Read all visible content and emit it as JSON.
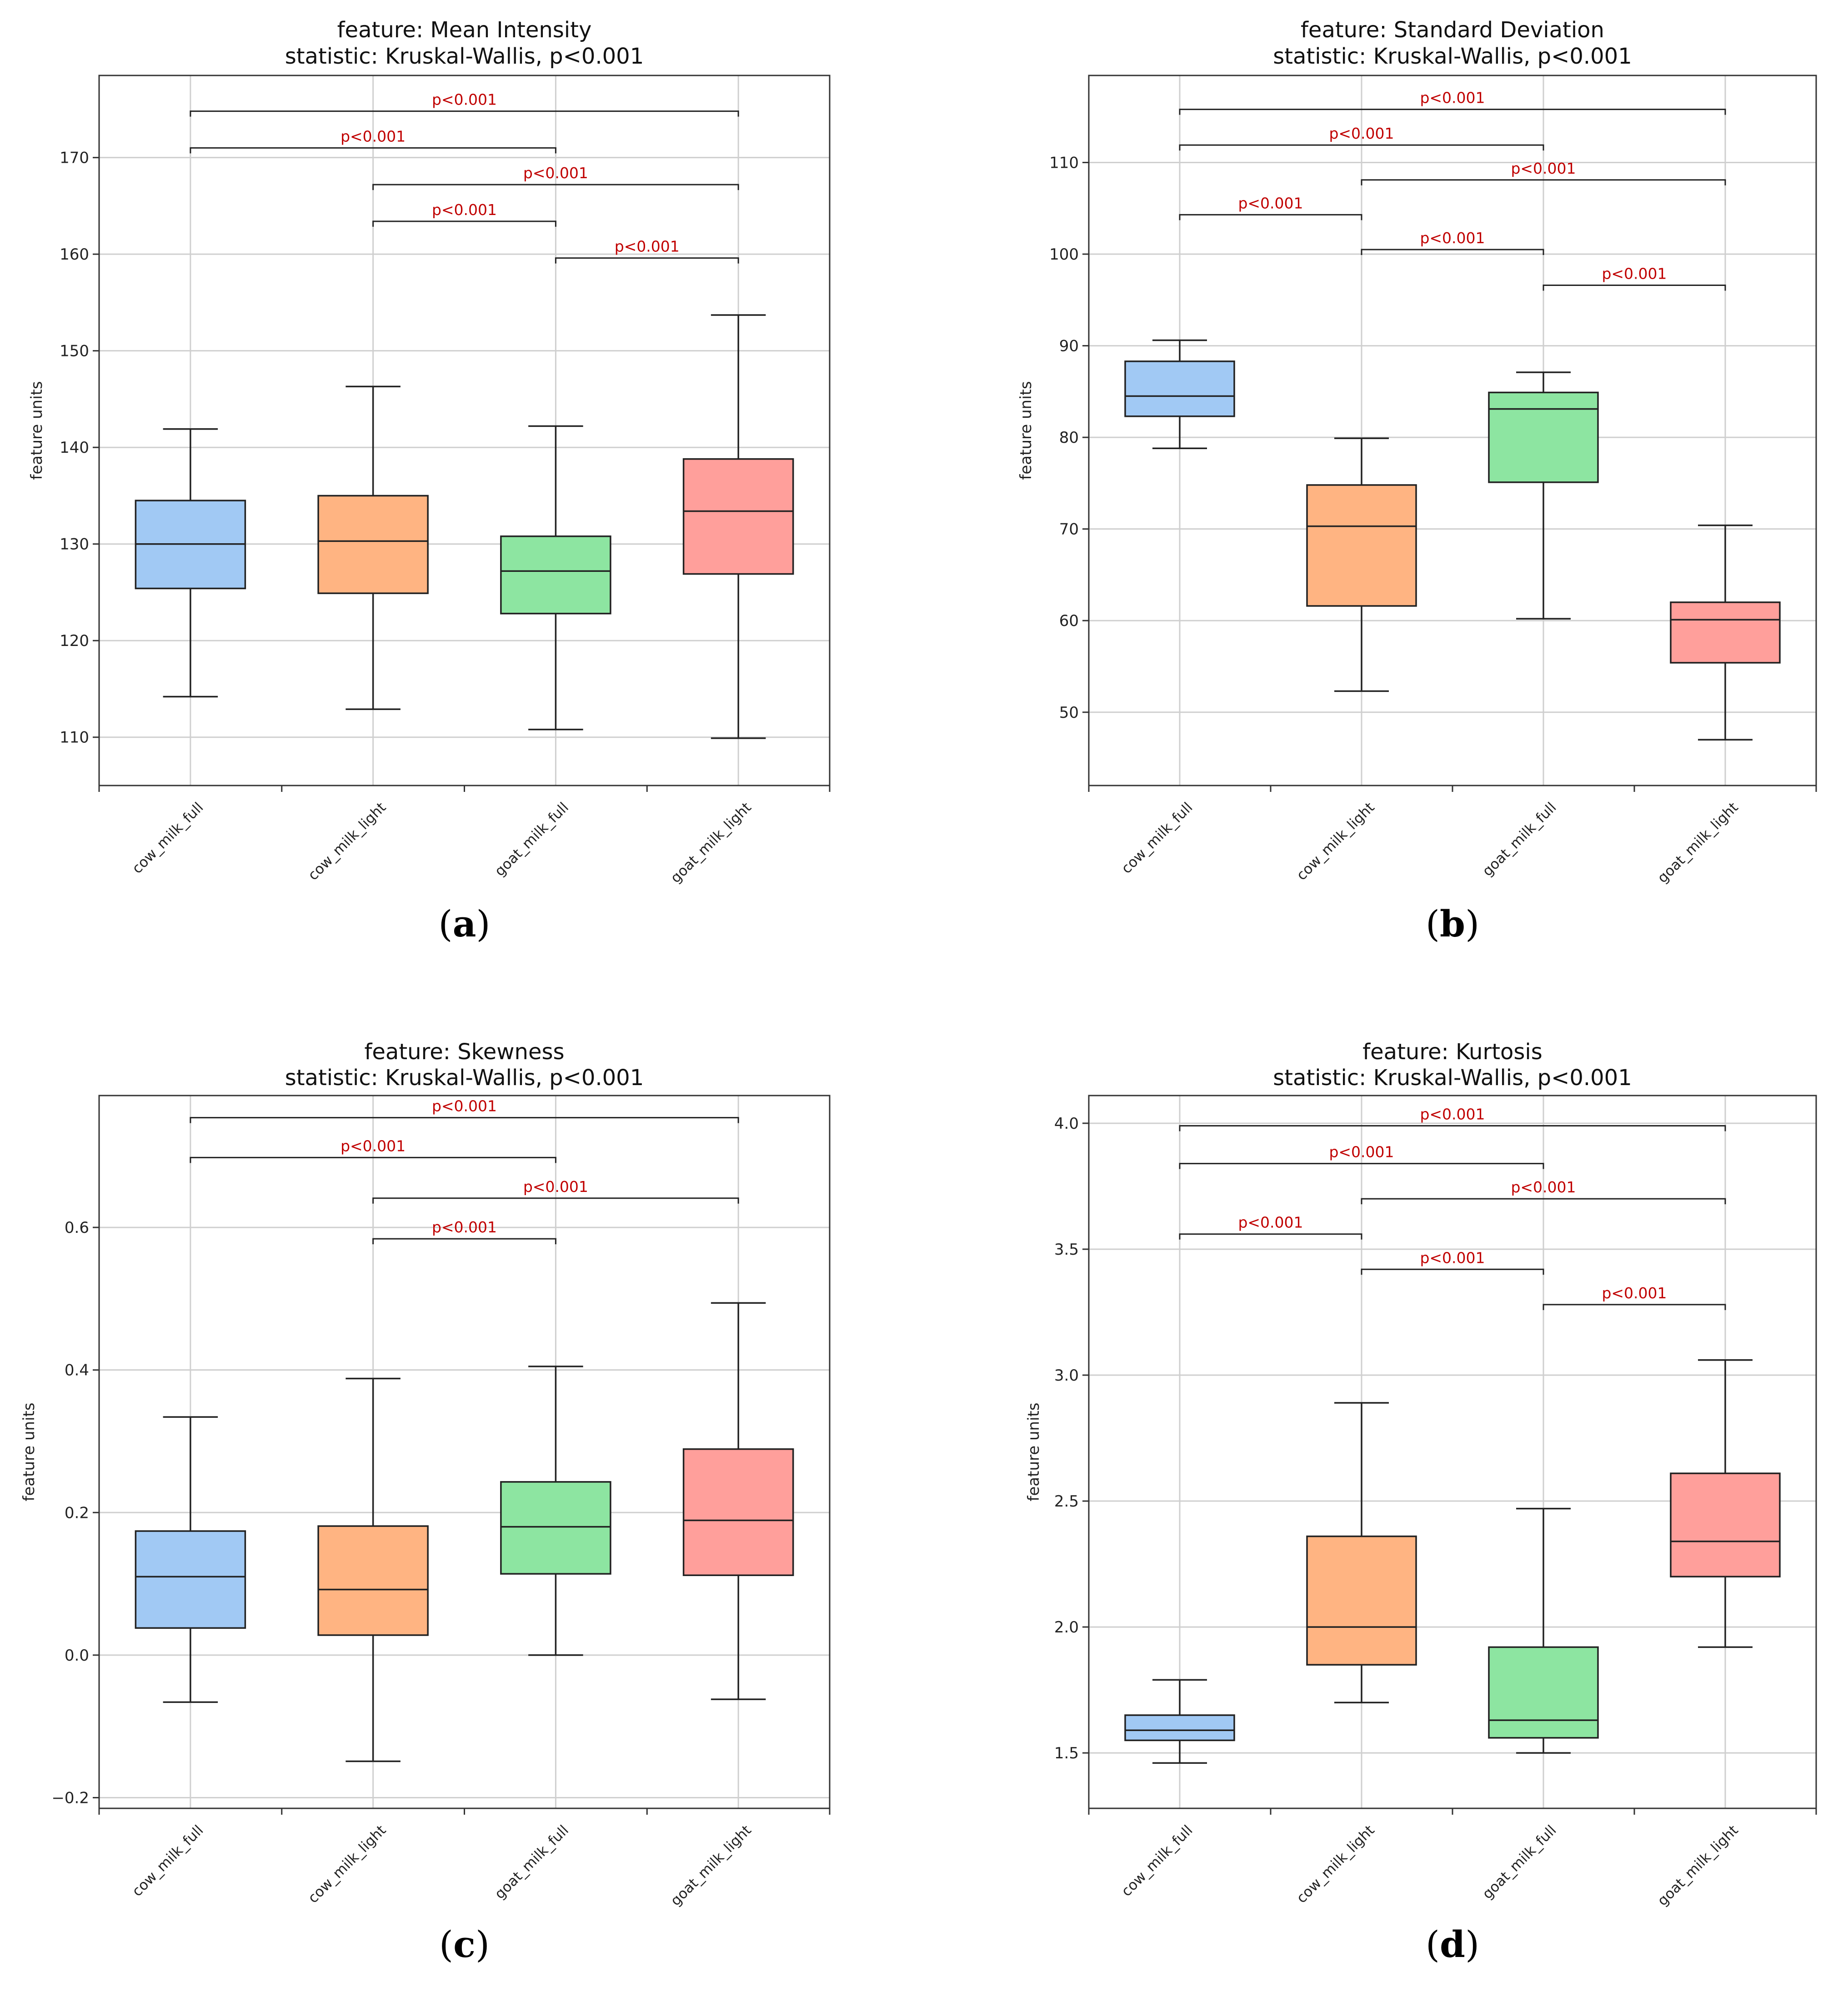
{
  "colors": {
    "box_fills": [
      "#a1c9f4",
      "#ffb482",
      "#8de5a1",
      "#ff9f9b"
    ],
    "sig_text": "#c00000",
    "grid": "#cfcfcf",
    "axis": "#333333"
  },
  "chart_data": [
    {
      "type": "box",
      "panel_label": "a",
      "title_line1": "feature: Mean Intensity",
      "title_line2": "statistic: Kruskal-Wallis, p<0.001",
      "ylabel": "feature units",
      "ylim": [
        105,
        178.5
      ],
      "yticks": [
        110,
        120,
        130,
        140,
        150,
        160,
        170
      ],
      "ytick_labels": [
        "110",
        "120",
        "130",
        "140",
        "150",
        "160",
        "170"
      ],
      "categories": [
        "cow_milk_full",
        "cow_milk_light",
        "goat_milk_full",
        "goat_milk_light"
      ],
      "boxes": [
        {
          "min": 114.2,
          "q1": 125.4,
          "median": 130.0,
          "q3": 134.5,
          "max": 141.9
        },
        {
          "min": 112.9,
          "q1": 124.9,
          "median": 130.3,
          "q3": 135.0,
          "max": 146.3
        },
        {
          "min": 110.8,
          "q1": 122.8,
          "median": 127.2,
          "q3": 130.8,
          "max": 142.2
        },
        {
          "min": 109.9,
          "q1": 126.9,
          "median": 133.4,
          "q3": 138.8,
          "max": 153.7
        }
      ],
      "brackets": [
        {
          "from": 0,
          "to": 3,
          "y": 174.8,
          "label": "p<0.001"
        },
        {
          "from": 0,
          "to": 2,
          "y": 171.0,
          "label": "p<0.001"
        },
        {
          "from": 1,
          "to": 3,
          "y": 167.2,
          "label": "p<0.001"
        },
        {
          "from": 1,
          "to": 2,
          "y": 163.4,
          "label": "p<0.001"
        },
        {
          "from": 2,
          "to": 3,
          "y": 159.6,
          "label": "p<0.001"
        }
      ]
    },
    {
      "type": "box",
      "panel_label": "b",
      "title_line1": "feature: Standard Deviation",
      "title_line2": "statistic: Kruskal-Wallis, p<0.001",
      "ylabel": "feature units",
      "ylim": [
        42,
        119.5
      ],
      "yticks": [
        50,
        60,
        70,
        80,
        90,
        100,
        110
      ],
      "ytick_labels": [
        "50",
        "60",
        "70",
        "80",
        "90",
        "100",
        "110"
      ],
      "categories": [
        "cow_milk_full",
        "cow_milk_light",
        "goat_milk_full",
        "goat_milk_light"
      ],
      "boxes": [
        {
          "min": 78.8,
          "q1": 82.3,
          "median": 84.5,
          "q3": 88.3,
          "max": 90.6
        },
        {
          "min": 52.3,
          "q1": 61.6,
          "median": 70.3,
          "q3": 74.8,
          "max": 79.9
        },
        {
          "min": 60.2,
          "q1": 75.1,
          "median": 83.1,
          "q3": 84.9,
          "max": 87.1
        },
        {
          "min": 47.0,
          "q1": 55.4,
          "median": 60.1,
          "q3": 62.0,
          "max": 70.4
        }
      ],
      "brackets": [
        {
          "from": 0,
          "to": 3,
          "y": 115.8,
          "label": "p<0.001"
        },
        {
          "from": 0,
          "to": 2,
          "y": 111.9,
          "label": "p<0.001"
        },
        {
          "from": 1,
          "to": 3,
          "y": 108.1,
          "label": "p<0.001"
        },
        {
          "from": 0,
          "to": 1,
          "y": 104.3,
          "label": "p<0.001"
        },
        {
          "from": 1,
          "to": 2,
          "y": 100.5,
          "label": "p<0.001"
        },
        {
          "from": 2,
          "to": 3,
          "y": 96.6,
          "label": "p<0.001"
        }
      ]
    },
    {
      "type": "box",
      "panel_label": "c",
      "title_line1": "feature: Skewness",
      "title_line2": "statistic: Kruskal-Wallis, p<0.001",
      "ylabel": "feature units",
      "ylim": [
        -0.215,
        0.785
      ],
      "yticks": [
        -0.2,
        0.0,
        0.2,
        0.4,
        0.6
      ],
      "ytick_labels": [
        "−0.2",
        "0.0",
        "0.2",
        "0.4",
        "0.6"
      ],
      "categories": [
        "cow_milk_full",
        "cow_milk_light",
        "goat_milk_full",
        "goat_milk_light"
      ],
      "boxes": [
        {
          "min": -0.066,
          "q1": 0.038,
          "median": 0.11,
          "q3": 0.174,
          "max": 0.334
        },
        {
          "min": -0.149,
          "q1": 0.028,
          "median": 0.092,
          "q3": 0.181,
          "max": 0.388
        },
        {
          "min": 0.0,
          "q1": 0.114,
          "median": 0.18,
          "q3": 0.243,
          "max": 0.405
        },
        {
          "min": -0.062,
          "q1": 0.112,
          "median": 0.189,
          "q3": 0.289,
          "max": 0.494
        }
      ],
      "brackets": [
        {
          "from": 0,
          "to": 3,
          "y": 0.754,
          "label": "p<0.001"
        },
        {
          "from": 0,
          "to": 2,
          "y": 0.698,
          "label": "p<0.001"
        },
        {
          "from": 1,
          "to": 3,
          "y": 0.641,
          "label": "p<0.001"
        },
        {
          "from": 1,
          "to": 2,
          "y": 0.584,
          "label": "p<0.001"
        }
      ]
    },
    {
      "type": "box",
      "panel_label": "d",
      "title_line1": "feature: Kurtosis",
      "title_line2": "statistic: Kruskal-Wallis, p<0.001",
      "ylabel": "feature units",
      "ylim": [
        1.28,
        4.11
      ],
      "yticks": [
        1.5,
        2.0,
        2.5,
        3.0,
        3.5,
        4.0
      ],
      "ytick_labels": [
        "1.5",
        "2.0",
        "2.5",
        "3.0",
        "3.5",
        "4.0"
      ],
      "categories": [
        "cow_milk_full",
        "cow_milk_light",
        "goat_milk_full",
        "goat_milk_light"
      ],
      "boxes": [
        {
          "min": 1.46,
          "q1": 1.55,
          "median": 1.59,
          "q3": 1.65,
          "max": 1.79
        },
        {
          "min": 1.7,
          "q1": 1.85,
          "median": 2.0,
          "q3": 2.36,
          "max": 2.89
        },
        {
          "min": 1.5,
          "q1": 1.56,
          "median": 1.63,
          "q3": 1.92,
          "max": 2.47
        },
        {
          "min": 1.92,
          "q1": 2.2,
          "median": 2.34,
          "q3": 2.61,
          "max": 3.06
        }
      ],
      "brackets": [
        {
          "from": 0,
          "to": 3,
          "y": 3.99,
          "label": "p<0.001"
        },
        {
          "from": 0,
          "to": 2,
          "y": 3.84,
          "label": "p<0.001"
        },
        {
          "from": 1,
          "to": 3,
          "y": 3.7,
          "label": "p<0.001"
        },
        {
          "from": 0,
          "to": 1,
          "y": 3.56,
          "label": "p<0.001"
        },
        {
          "from": 1,
          "to": 2,
          "y": 3.42,
          "label": "p<0.001"
        },
        {
          "from": 2,
          "to": 3,
          "y": 3.28,
          "label": "p<0.001"
        }
      ]
    }
  ]
}
